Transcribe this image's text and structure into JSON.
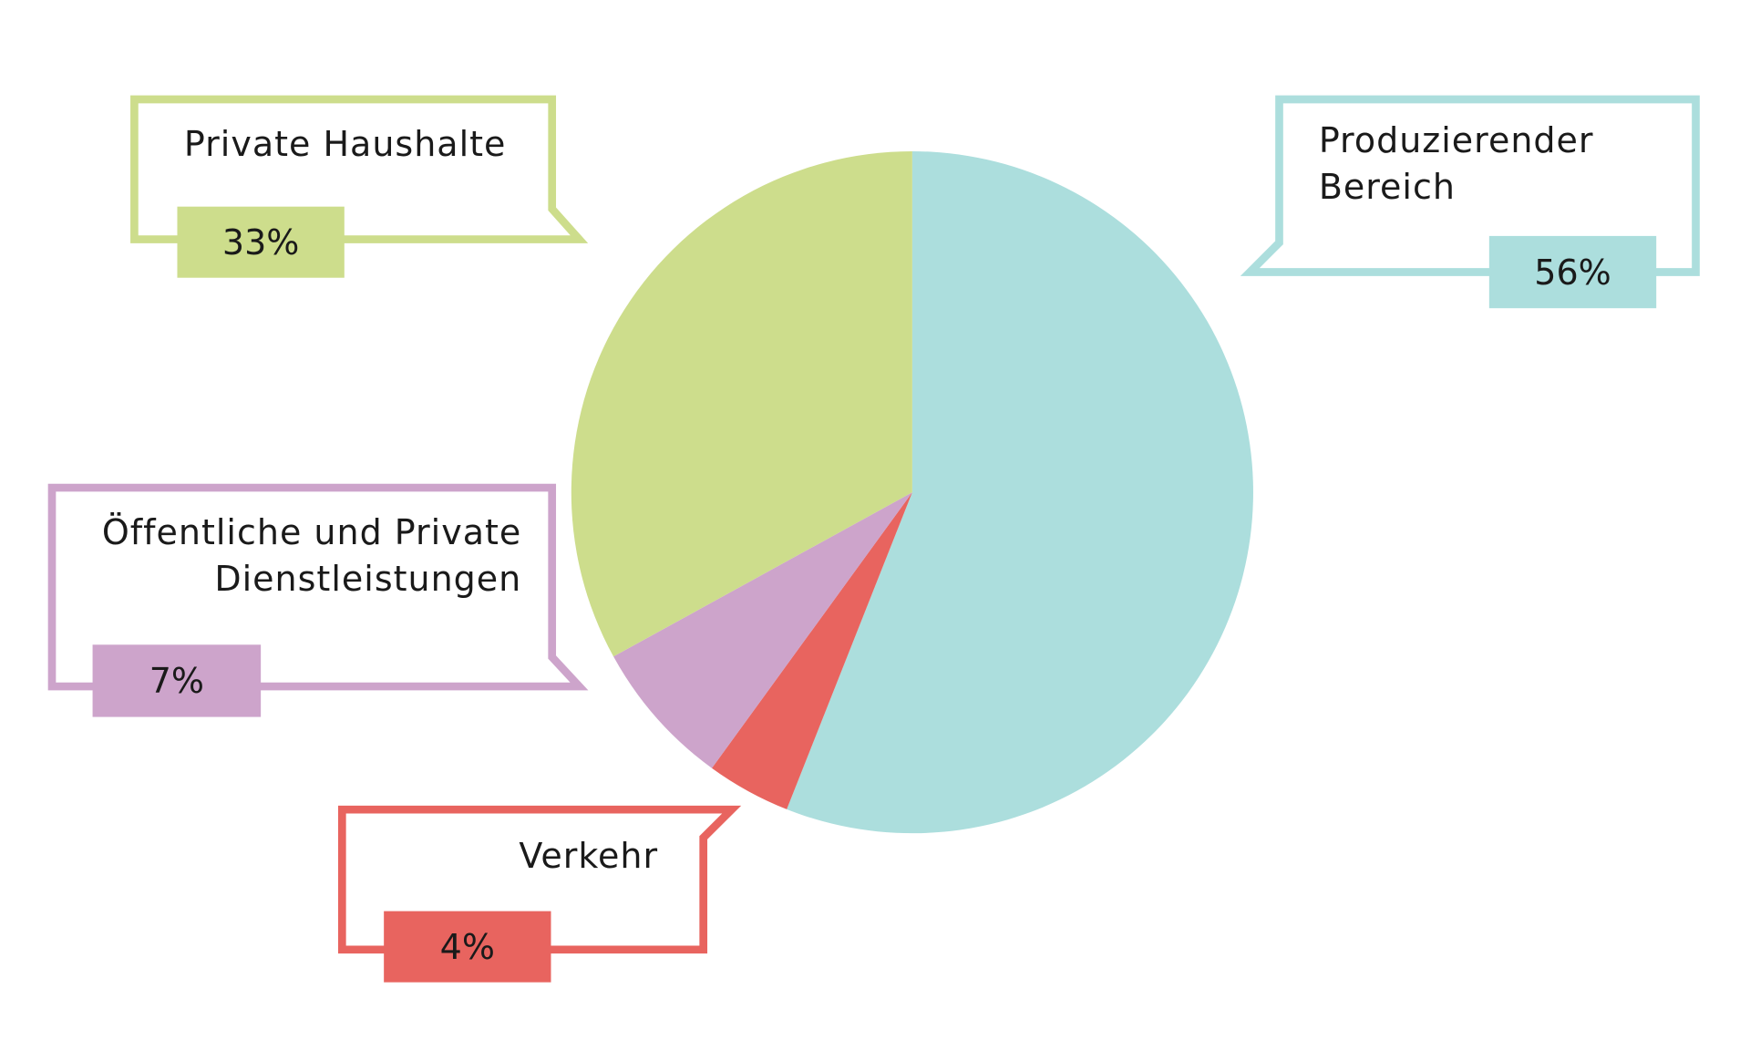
{
  "chart_data": {
    "type": "pie",
    "categories": [
      "Produzierender Bereich",
      "Verkehr",
      "Öffentliche und Private Dienstleistungen",
      "Private Haushalte"
    ],
    "values": [
      56,
      4,
      7,
      33
    ],
    "value_labels": [
      "56%",
      "4%",
      "7%",
      "33%"
    ],
    "colors": [
      "#acdedd",
      "#e8645f",
      "#cda4cb",
      "#cddd8c"
    ]
  }
}
